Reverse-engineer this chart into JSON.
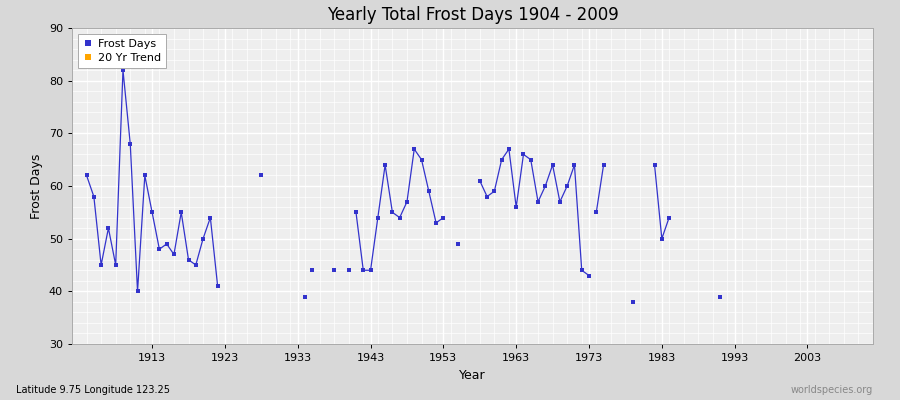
{
  "title": "Yearly Total Frost Days 1904 - 2009",
  "xlabel": "Year",
  "ylabel": "Frost Days",
  "subtitle": "Latitude 9.75 Longitude 123.25",
  "watermark": "worldspecies.org",
  "ylim": [
    30,
    90
  ],
  "xlim": [
    1902,
    2012
  ],
  "yticks": [
    30,
    40,
    50,
    60,
    70,
    80,
    90
  ],
  "xticks": [
    1913,
    1923,
    1933,
    1943,
    1953,
    1963,
    1973,
    1983,
    1993,
    2003
  ],
  "line_color": "#3333cc",
  "trend_color": "#FFA500",
  "bg_color": "#d8d8d8",
  "plot_bg": "#eeeeee",
  "legend_frost": "Frost Days",
  "legend_trend": "20 Yr Trend",
  "connected_groups": [
    [
      [
        1904,
        62
      ],
      [
        1905,
        58
      ],
      [
        1906,
        45
      ],
      [
        1907,
        52
      ],
      [
        1908,
        45
      ],
      [
        1909,
        82
      ],
      [
        1910,
        68
      ],
      [
        1911,
        40
      ],
      [
        1912,
        62
      ],
      [
        1913,
        55
      ],
      [
        1914,
        48
      ],
      [
        1915,
        49
      ],
      [
        1916,
        47
      ],
      [
        1917,
        55
      ],
      [
        1918,
        46
      ],
      [
        1919,
        45
      ],
      [
        1920,
        50
      ],
      [
        1921,
        54
      ],
      [
        1922,
        41
      ]
    ],
    [
      [
        1941,
        55
      ],
      [
        1942,
        44
      ],
      [
        1943,
        44
      ],
      [
        1944,
        54
      ],
      [
        1945,
        64
      ],
      [
        1946,
        55
      ],
      [
        1947,
        54
      ],
      [
        1948,
        57
      ],
      [
        1949,
        67
      ],
      [
        1950,
        65
      ],
      [
        1951,
        59
      ],
      [
        1952,
        53
      ],
      [
        1953,
        54
      ]
    ],
    [
      [
        1958,
        61
      ],
      [
        1959,
        58
      ],
      [
        1960,
        59
      ],
      [
        1961,
        65
      ],
      [
        1962,
        67
      ],
      [
        1963,
        56
      ],
      [
        1964,
        66
      ],
      [
        1965,
        65
      ],
      [
        1966,
        57
      ],
      [
        1967,
        60
      ],
      [
        1968,
        64
      ],
      [
        1969,
        57
      ],
      [
        1970,
        60
      ],
      [
        1971,
        64
      ],
      [
        1972,
        44
      ],
      [
        1973,
        43
      ]
    ],
    [
      [
        1974,
        55
      ],
      [
        1975,
        64
      ]
    ],
    [
      [
        1982,
        64
      ],
      [
        1983,
        50
      ],
      [
        1984,
        54
      ]
    ]
  ],
  "isolated_points": [
    [
      1928,
      62
    ],
    [
      1934,
      39
    ],
    [
      1935,
      44
    ],
    [
      1938,
      44
    ],
    [
      1940,
      44
    ],
    [
      1955,
      49
    ],
    [
      1979,
      38
    ],
    [
      1991,
      39
    ]
  ]
}
